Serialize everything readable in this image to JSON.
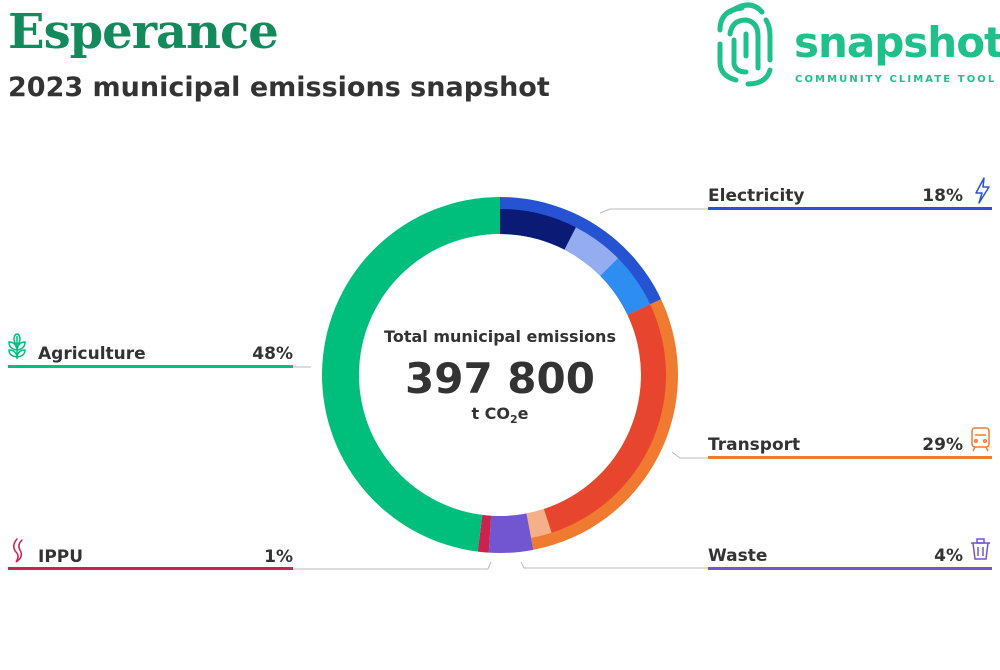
{
  "header": {
    "title": "Esperance",
    "subtitle": "2023 municipal emissions snapshot"
  },
  "brand": {
    "name": "snapshot",
    "tagline": "COMMUNITY CLIMATE TOOL",
    "color": "#1fc08a"
  },
  "center": {
    "caption": "Total municipal emissions",
    "value": "397 800",
    "unit_prefix": "t CO",
    "unit_sub": "2",
    "unit_suffix": "e"
  },
  "chart_data": {
    "type": "pie",
    "donut": true,
    "total": "397 800",
    "series": [
      {
        "name": "Electricity",
        "percent_label": "18%",
        "value": 18,
        "color": "#2653d1",
        "icon": "lightning-icon",
        "subsegments": [
          {
            "share": 0.42,
            "color": "#0a1a75"
          },
          {
            "share": 0.28,
            "color": "#94adf0"
          },
          {
            "share": 0.3,
            "color": "#2e8df0"
          }
        ]
      },
      {
        "name": "Transport",
        "percent_label": "29%",
        "value": 29,
        "color": "#f07b30",
        "icon": "train-icon",
        "subsegments": [
          {
            "share": 0.93,
            "color": "#e8452f"
          },
          {
            "share": 0.07,
            "color": "#f5b08a"
          }
        ]
      },
      {
        "name": "Waste",
        "percent_label": "4%",
        "value": 4,
        "color": "#7255d0",
        "icon": "trash-icon",
        "subsegments": []
      },
      {
        "name": "IPPU",
        "percent_label": "1%",
        "value": 1,
        "color": "#cc2250",
        "icon": "flame-icon",
        "subsegments": []
      },
      {
        "name": "Agriculture",
        "percent_label": "48%",
        "value": 48,
        "color": "#00bf7d",
        "icon": "wheat-icon",
        "subsegments": []
      }
    ]
  }
}
